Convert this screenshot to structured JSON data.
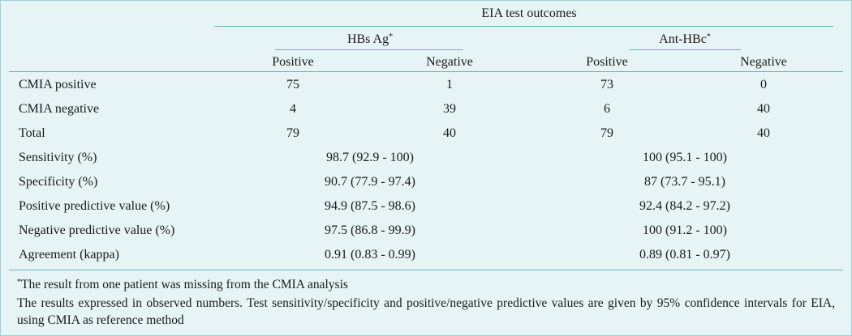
{
  "header": {
    "group": "EIA test outcomes",
    "hbsag": "HBs Ag",
    "hbsag_mark": "*",
    "antihbc": "Ant-HBc",
    "antihbc_mark": "*",
    "positive": "Positive",
    "negative": "Negative"
  },
  "count_rows": [
    {
      "label": "CMIA positive",
      "values": [
        "75",
        "1",
        "73",
        "0"
      ]
    },
    {
      "label": "CMIA negative",
      "values": [
        "4",
        "39",
        "6",
        "40"
      ]
    },
    {
      "label": "Total",
      "values": [
        "79",
        "40",
        "79",
        "40"
      ]
    }
  ],
  "stat_rows": [
    {
      "label": "Sensitivity (%)",
      "hbsag": "98.7 (92.9 - 100)",
      "antihbc": "100 (95.1 - 100)"
    },
    {
      "label": "Specificity (%)",
      "hbsag": "90.7 (77.9 - 97.4)",
      "antihbc": "87 (73.7 - 95.1)"
    },
    {
      "label": "Positive predictive value (%)",
      "hbsag": "94.9 (87.5 - 98.6)",
      "antihbc": "92.4 (84.2 - 97.2)"
    },
    {
      "label": "Negative predictive value (%)",
      "hbsag": "97.5 (86.8 - 99.9)",
      "antihbc": "100 (91.2 - 100)"
    },
    {
      "label": "Agreement (kappa)",
      "hbsag": "0.91 (0.83 - 0.99)",
      "antihbc": "0.89 (0.81 - 0.97)"
    }
  ],
  "footnotes": {
    "mark": "*",
    "missing": "The result from one patient was missing from the CMIA analysis",
    "note": "The results expressed in observed numbers. Test sensitivity/specificity and positive/negative predictive values are given by 95% confidence intervals for EIA, using CMIA as reference method"
  }
}
